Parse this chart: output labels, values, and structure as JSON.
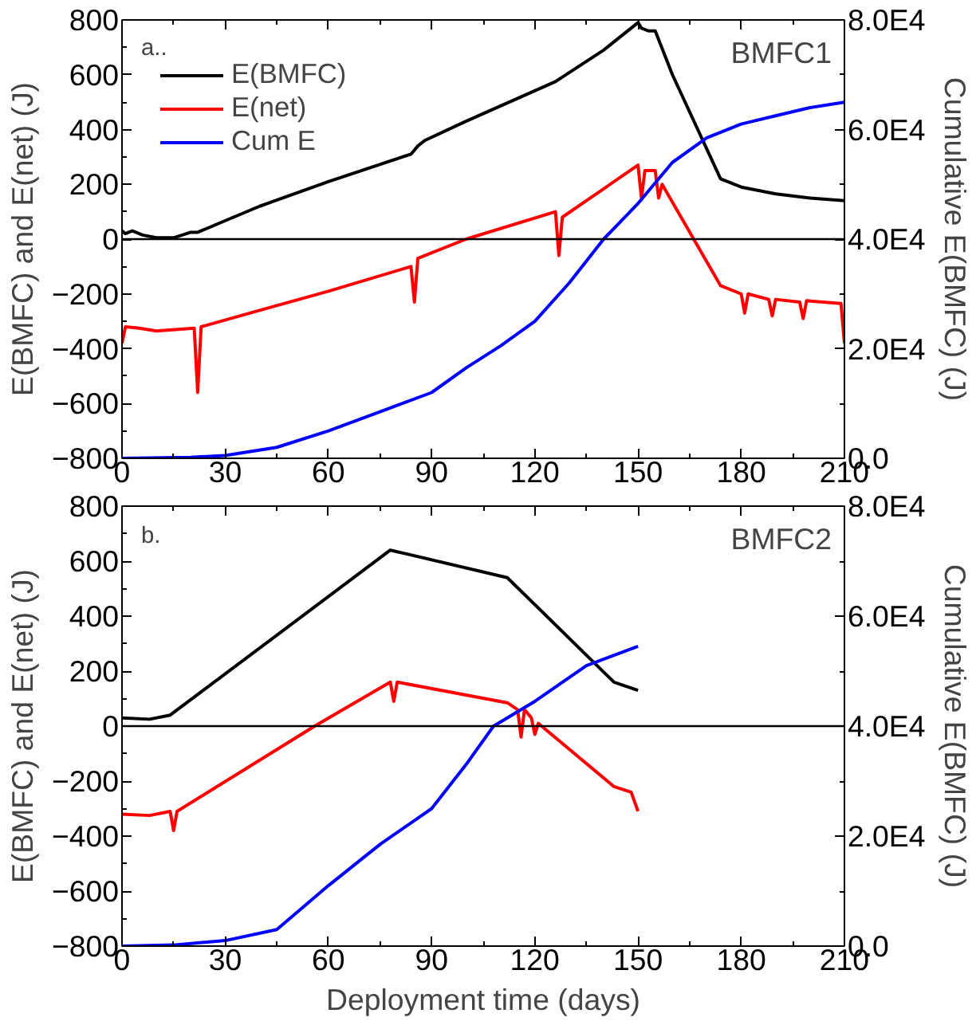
{
  "chart_data": [
    {
      "type": "line",
      "annotations": [
        "a..",
        "BMFC1"
      ],
      "ylabel": "E(BMFC) and E(net) (J)",
      "y2label": "Cumulative E(BMFC) (J)",
      "xlim": [
        0,
        210
      ],
      "xticks": [
        0,
        30,
        60,
        90,
        120,
        150,
        180,
        210
      ],
      "ylim": [
        -800,
        800
      ],
      "yticks": [
        -800,
        -600,
        -400,
        -200,
        0,
        200,
        400,
        600,
        800
      ],
      "y2lim": [
        0,
        80000
      ],
      "y2ticks": [
        {
          "value": 0,
          "label": "0.0"
        },
        {
          "value": 20000,
          "label": "2.0E4"
        },
        {
          "value": 40000,
          "label": "4.0E4"
        },
        {
          "value": 60000,
          "label": "6.0E4"
        },
        {
          "value": 80000,
          "label": "8.0E4"
        }
      ],
      "grid": false,
      "legend": "top left",
      "ref_lines": [
        {
          "axis": "y",
          "value": 0,
          "color": "#000000"
        }
      ],
      "series": [
        {
          "name": "E(BMFC)",
          "color": "#000000",
          "x": [
            0,
            1,
            3,
            6,
            10,
            15,
            20,
            22,
            40,
            60,
            84,
            86,
            88,
            100,
            126,
            140,
            150,
            151,
            153,
            155,
            160,
            174,
            180,
            190,
            200,
            210
          ],
          "values": [
            30,
            20,
            30,
            15,
            5,
            5,
            25,
            25,
            120,
            210,
            310,
            340,
            360,
            430,
            575,
            690,
            790,
            770,
            760,
            760,
            600,
            220,
            190,
            165,
            150,
            140
          ]
        },
        {
          "name": "E(net)",
          "color": "#ff0000",
          "x": [
            0,
            1,
            5,
            10,
            21,
            22,
            23,
            40,
            60,
            84,
            85,
            86,
            100,
            126,
            127,
            128,
            150,
            151,
            152,
            155,
            156,
            157,
            174,
            180,
            181,
            182,
            188,
            189,
            190,
            197,
            198,
            199,
            209,
            210
          ],
          "values": [
            -380,
            -320,
            -325,
            -335,
            -325,
            -560,
            -320,
            -260,
            -190,
            -100,
            -230,
            -70,
            0,
            100,
            -60,
            80,
            270,
            150,
            250,
            250,
            150,
            200,
            -170,
            -200,
            -270,
            -200,
            -220,
            -280,
            -220,
            -230,
            -290,
            -225,
            -235,
            -380
          ]
        },
        {
          "name": "Cum E",
          "color": "#0000ff",
          "axis": "y2",
          "x": [
            0,
            20,
            30,
            45,
            60,
            75,
            90,
            100,
            110,
            120,
            130,
            140,
            150,
            160,
            170,
            180,
            190,
            200,
            210
          ],
          "values": [
            0,
            200,
            500,
            2000,
            5000,
            8500,
            12000,
            16500,
            20500,
            25000,
            32000,
            40000,
            46500,
            54000,
            58500,
            61000,
            62500,
            64000,
            65000
          ]
        }
      ]
    },
    {
      "type": "line",
      "annotations": [
        "b.",
        "BMFC2"
      ],
      "xlabel": "Deployment time (days)",
      "ylabel": "E(BMFC) and E(net) (J)",
      "y2label": "Cumulative E(BMFC) (J)",
      "xlim": [
        0,
        210
      ],
      "xticks": [
        0,
        30,
        60,
        90,
        120,
        150,
        180,
        210
      ],
      "ylim": [
        -800,
        800
      ],
      "yticks": [
        -800,
        -600,
        -400,
        -200,
        0,
        200,
        400,
        600,
        800
      ],
      "y2lim": [
        0,
        80000
      ],
      "y2ticks": [
        {
          "value": 0,
          "label": "0.0"
        },
        {
          "value": 20000,
          "label": "2.0E4"
        },
        {
          "value": 40000,
          "label": "4.0E4"
        },
        {
          "value": 60000,
          "label": "6.0E4"
        },
        {
          "value": 80000,
          "label": "8.0E4"
        }
      ],
      "grid": false,
      "ref_lines": [
        {
          "axis": "y",
          "value": 0,
          "color": "#000000"
        }
      ],
      "series": [
        {
          "color": "#000000",
          "x": [
            0,
            8,
            14,
            78,
            112,
            143,
            150
          ],
          "values": [
            30,
            25,
            40,
            640,
            540,
            160,
            130
          ]
        },
        {
          "color": "#ff0000",
          "x": [
            0,
            8,
            14,
            15,
            16,
            56,
            78,
            79,
            80,
            112,
            115,
            116,
            117,
            119,
            120,
            121,
            143,
            148,
            150
          ],
          "values": [
            -320,
            -325,
            -310,
            -380,
            -310,
            0,
            160,
            90,
            160,
            85,
            60,
            -40,
            60,
            30,
            -30,
            10,
            -220,
            -240,
            -310
          ]
        },
        {
          "color": "#0000ff",
          "axis": "y2",
          "x": [
            0,
            15,
            30,
            45,
            60,
            75,
            90,
            100,
            108,
            120,
            135,
            150
          ],
          "values": [
            0,
            200,
            1000,
            3000,
            11000,
            18500,
            25000,
            33000,
            40000,
            44500,
            51000,
            54500
          ]
        }
      ]
    }
  ]
}
